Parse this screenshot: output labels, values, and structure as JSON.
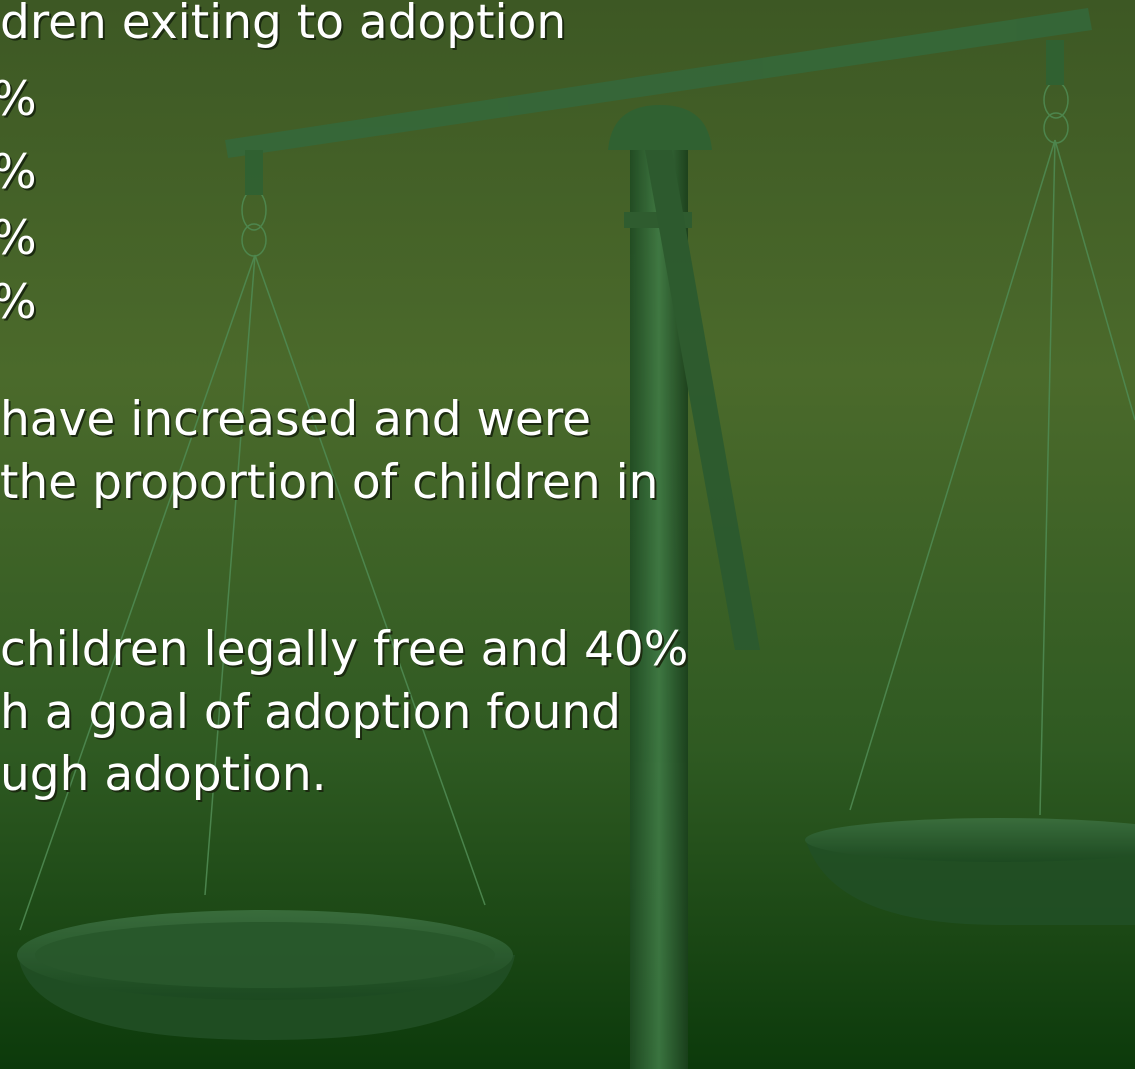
{
  "lines": [
    "dren exiting to adoption",
    "%",
    "%",
    "%",
    "%",
    "have increased and were",
    "the proportion of children in",
    "children legally free and 40%",
    "h a goal of adoption found",
    "ugh adoption."
  ]
}
